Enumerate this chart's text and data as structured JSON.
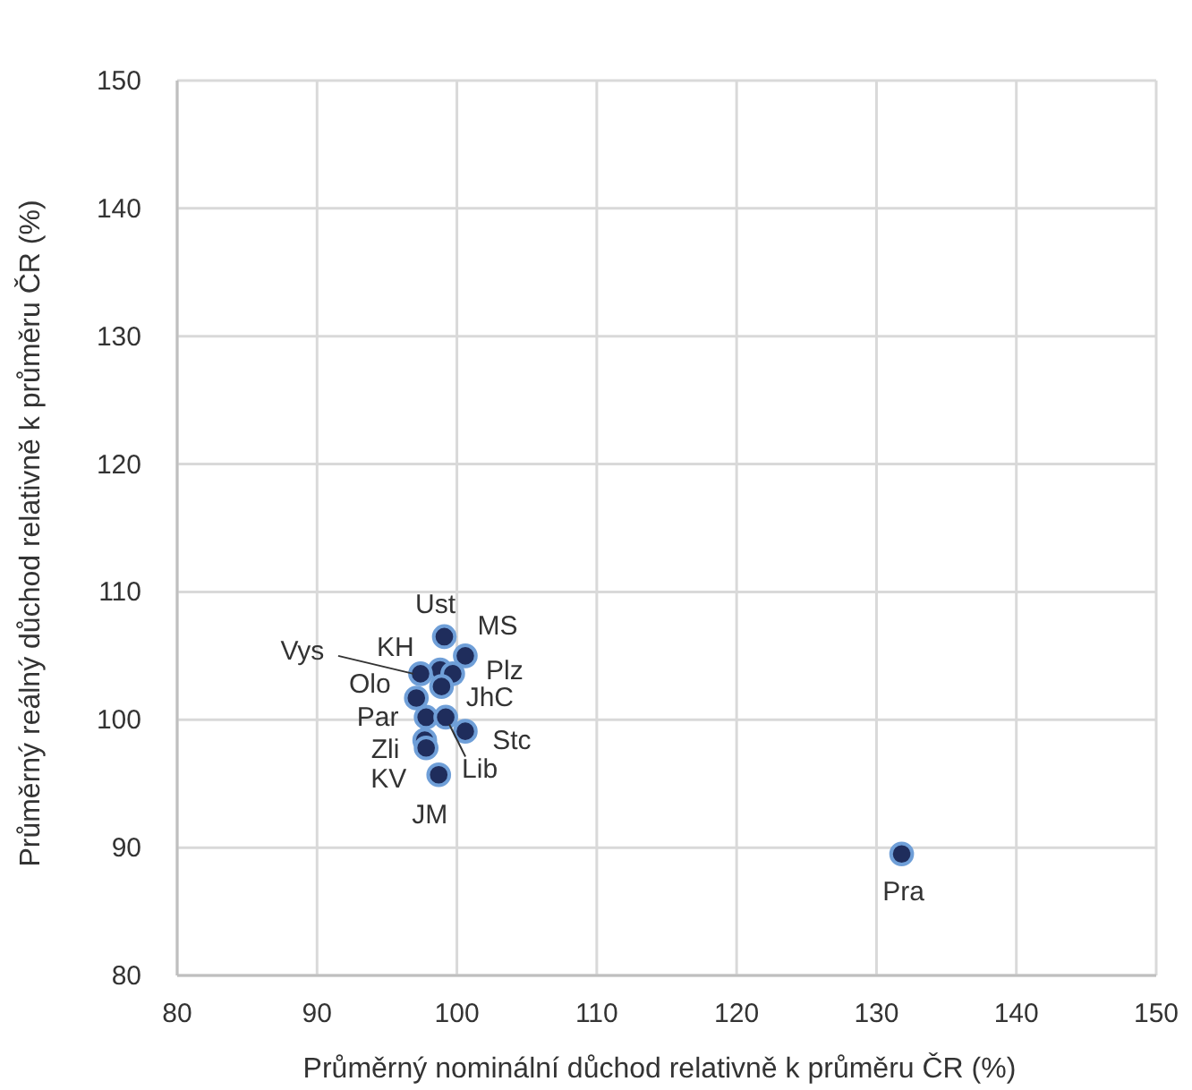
{
  "chart_data": {
    "type": "scatter",
    "xlabel": "Průměrný nominální důchod relativně k průměru ČR (%)",
    "ylabel": "Průměrný reálný důchod relativně k průměru ČR  (%)",
    "x": [
      99.1,
      100.6,
      98.8,
      99.7,
      97.4,
      98.9,
      97.1,
      97.8,
      99.2,
      100.6,
      97.7,
      97.8,
      98.7,
      131.8
    ],
    "values": [
      106.5,
      105.0,
      103.9,
      103.6,
      103.6,
      102.6,
      101.7,
      100.2,
      100.2,
      99.1,
      98.4,
      97.8,
      95.7,
      89.5
    ],
    "annotations": [
      {
        "text": "Ust",
        "x": 99.1,
        "y": 106.5
      },
      {
        "text": "MS",
        "x": 100.6,
        "y": 105.0
      },
      {
        "text": "KH",
        "x": 98.8,
        "y": 103.9
      },
      {
        "text": "Plz",
        "x": 99.7,
        "y": 103.6
      },
      {
        "text": "Vys",
        "x": 97.4,
        "y": 103.6
      },
      {
        "text": "JhC",
        "x": 98.9,
        "y": 102.6
      },
      {
        "text": "Olo",
        "x": 97.1,
        "y": 101.7
      },
      {
        "text": "Par",
        "x": 97.8,
        "y": 100.2
      },
      {
        "text": "Lib",
        "x": 99.2,
        "y": 100.2
      },
      {
        "text": "Stc",
        "x": 100.6,
        "y": 99.1
      },
      {
        "text": "Zli",
        "x": 97.7,
        "y": 98.4
      },
      {
        "text": "KV",
        "x": 97.8,
        "y": 97.8
      },
      {
        "text": "JM",
        "x": 98.7,
        "y": 95.7
      },
      {
        "text": "Pra",
        "x": 131.8,
        "y": 89.5
      }
    ],
    "color": "#1f2d5c",
    "marker": "circle",
    "grid": true,
    "xlim": [
      80,
      150
    ],
    "xticks": [
      80,
      90,
      100,
      110,
      120,
      130,
      140,
      150
    ],
    "ylim": [
      80,
      150
    ],
    "yticks": [
      80,
      90,
      100,
      110,
      120,
      130,
      140,
      150
    ]
  }
}
